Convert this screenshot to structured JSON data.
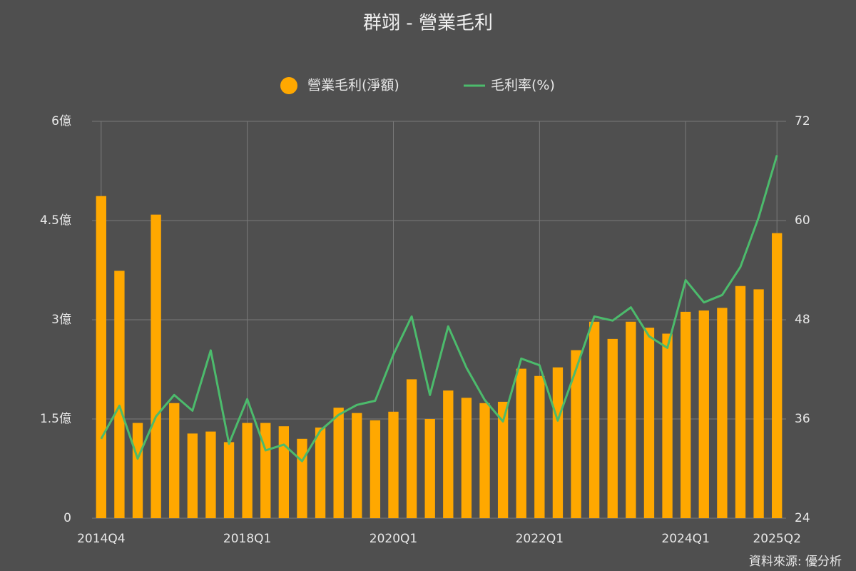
{
  "chart_data": {
    "type": "bar-line",
    "title": "群翊 - 營業毛利",
    "source": "資料來源: 優分析",
    "categories": [
      "2014Q4",
      null,
      null,
      null,
      null,
      null,
      null,
      null,
      "2018Q1",
      null,
      null,
      null,
      null,
      null,
      null,
      null,
      "2020Q1",
      null,
      null,
      null,
      null,
      null,
      null,
      null,
      "2022Q1",
      null,
      null,
      null,
      null,
      null,
      null,
      null,
      "2024Q1",
      null,
      null,
      null,
      null,
      "2025Q2"
    ],
    "series": [
      {
        "name": "營業毛利(淨額)",
        "type": "bar",
        "axis": "y",
        "color": "#ffa800",
        "values": [
          4.87,
          3.74,
          1.44,
          4.59,
          1.74,
          1.28,
          1.31,
          1.15,
          1.44,
          1.44,
          1.39,
          1.2,
          1.37,
          1.67,
          1.59,
          1.48,
          1.61,
          2.1,
          1.5,
          1.93,
          1.82,
          1.74,
          1.76,
          2.26,
          2.15,
          2.28,
          2.54,
          2.97,
          2.71,
          2.97,
          2.88,
          2.79,
          3.12,
          3.14,
          3.18,
          3.51,
          3.46,
          4.31
        ]
      },
      {
        "name": "毛利率(%)",
        "type": "line",
        "axis": "y2",
        "color": "#4cbb6c",
        "values": [
          33.6,
          37.6,
          31.2,
          36.3,
          38.9,
          37.0,
          44.3,
          33.0,
          38.4,
          32.2,
          32.9,
          30.9,
          34.6,
          36.5,
          37.7,
          38.2,
          43.8,
          48.4,
          38.9,
          47.2,
          42.2,
          38.3,
          35.7,
          43.3,
          42.5,
          35.8,
          42.0,
          48.4,
          47.9,
          49.5,
          46.0,
          44.6,
          52.8,
          50.1,
          51.0,
          54.4,
          60.4,
          67.9
        ]
      }
    ],
    "ylim": [
      0,
      6
    ],
    "yticks": [
      0,
      {
        "value": 1.5,
        "label": "1.5億"
      },
      {
        "value": 3,
        "label": "3億"
      },
      {
        "value": 4.5,
        "label": "4.5億"
      },
      {
        "value": 6,
        "label": "6億"
      }
    ],
    "y2lim": [
      24,
      72
    ],
    "y2ticks": [
      24,
      36,
      48,
      60,
      72
    ],
    "grid": true,
    "legend": "top"
  }
}
